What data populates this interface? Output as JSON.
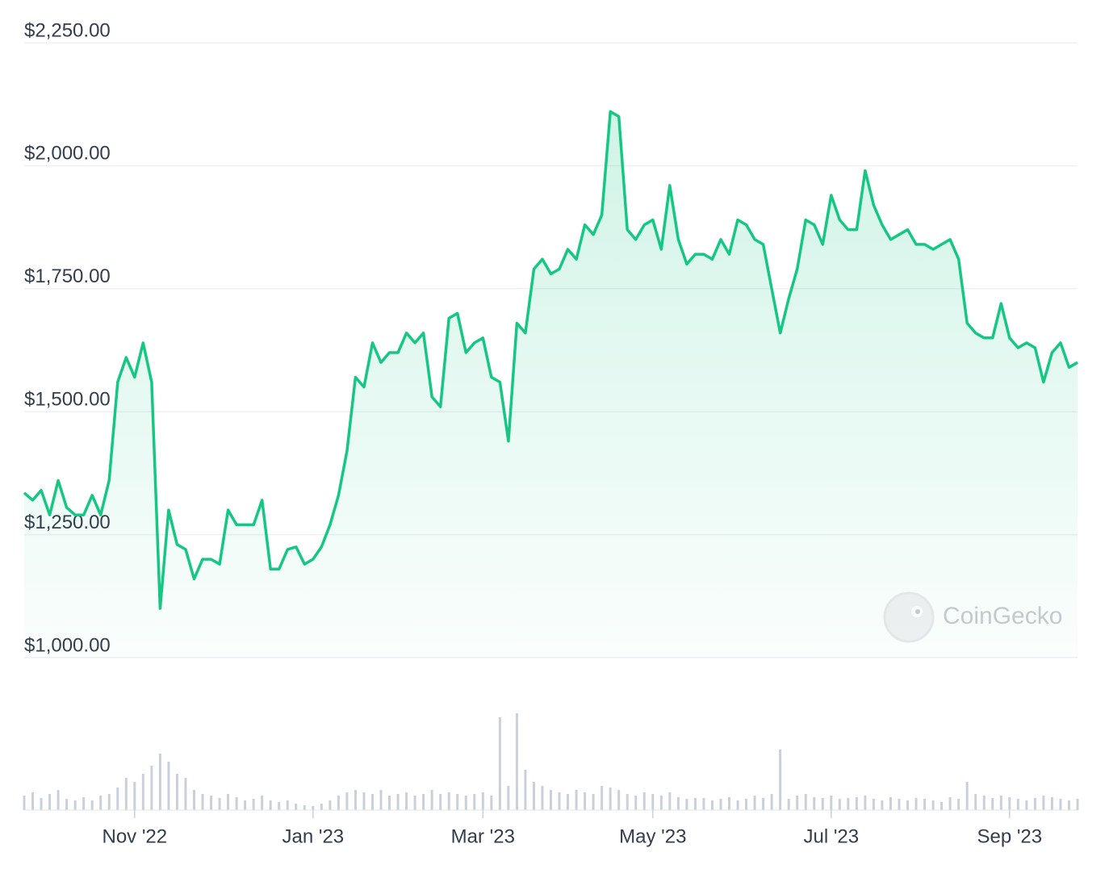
{
  "chart_data": {
    "type": "area",
    "watermark": "CoinGecko",
    "color": "#16c784",
    "volume_color": "#c9d0db",
    "grid": true,
    "ylim": [
      1000,
      2250
    ],
    "yticks": [
      {
        "value": 1000,
        "label": "$1,000.00"
      },
      {
        "value": 1250,
        "label": "$1,250.00"
      },
      {
        "value": 1500,
        "label": "$1,500.00"
      },
      {
        "value": 1750,
        "label": "$1,750.00"
      },
      {
        "value": 2000,
        "label": "$2,000.00"
      },
      {
        "value": 2250,
        "label": "$2,250.00"
      }
    ],
    "categories": [
      null,
      null,
      null,
      null,
      null,
      null,
      null,
      null,
      null,
      null,
      null,
      null,
      null,
      "Nov '22",
      null,
      null,
      null,
      null,
      null,
      null,
      null,
      null,
      null,
      null,
      null,
      null,
      null,
      null,
      null,
      null,
      null,
      null,
      null,
      null,
      "Jan '23",
      null,
      null,
      null,
      null,
      null,
      null,
      null,
      null,
      null,
      null,
      null,
      null,
      null,
      null,
      null,
      null,
      null,
      null,
      null,
      "Mar '23",
      null,
      null,
      null,
      null,
      null,
      null,
      null,
      null,
      null,
      null,
      null,
      null,
      null,
      null,
      null,
      null,
      null,
      null,
      null,
      "May '23",
      null,
      null,
      null,
      null,
      null,
      null,
      null,
      null,
      null,
      null,
      null,
      null,
      null,
      null,
      null,
      null,
      null,
      null,
      null,
      null,
      "Jul '23",
      null,
      null,
      null,
      null,
      null,
      null,
      null,
      null,
      null,
      null,
      null,
      null,
      null,
      null,
      null,
      null,
      null,
      null,
      null,
      null,
      "Sep '23",
      null,
      null,
      null,
      null,
      null,
      null,
      null,
      null
    ],
    "values": [
      1335,
      1320,
      1340,
      1290,
      1360,
      1305,
      1290,
      1290,
      1330,
      1290,
      1360,
      1560,
      1610,
      1570,
      1640,
      1560,
      1100,
      1300,
      1230,
      1220,
      1160,
      1200,
      1200,
      1190,
      1300,
      1270,
      1270,
      1270,
      1320,
      1180,
      1180,
      1220,
      1225,
      1190,
      1200,
      1225,
      1270,
      1330,
      1420,
      1570,
      1550,
      1640,
      1600,
      1620,
      1620,
      1660,
      1640,
      1660,
      1530,
      1510,
      1690,
      1700,
      1620,
      1640,
      1650,
      1570,
      1560,
      1440,
      1680,
      1660,
      1790,
      1810,
      1780,
      1790,
      1830,
      1810,
      1880,
      1860,
      1900,
      2110,
      2100,
      1870,
      1850,
      1880,
      1890,
      1830,
      1960,
      1850,
      1800,
      1820,
      1820,
      1810,
      1850,
      1820,
      1890,
      1880,
      1850,
      1840,
      1750,
      1660,
      1730,
      1790,
      1890,
      1880,
      1840,
      1940,
      1890,
      1870,
      1870,
      1990,
      1920,
      1880,
      1850,
      1860,
      1870,
      1840,
      1840,
      1830,
      1840,
      1850,
      1810,
      1680,
      1660,
      1650,
      1650,
      1720,
      1650,
      1630,
      1640,
      1630,
      1560,
      1620,
      1640,
      1590,
      1600
    ],
    "volume": [
      18,
      22,
      15,
      20,
      25,
      14,
      12,
      16,
      12,
      18,
      20,
      28,
      40,
      35,
      45,
      55,
      70,
      60,
      45,
      40,
      25,
      20,
      18,
      15,
      20,
      16,
      12,
      14,
      18,
      12,
      10,
      12,
      8,
      6,
      5,
      8,
      12,
      18,
      22,
      25,
      22,
      20,
      25,
      18,
      20,
      22,
      18,
      20,
      25,
      20,
      22,
      20,
      18,
      20,
      22,
      18,
      115,
      30,
      120,
      50,
      35,
      30,
      25,
      22,
      20,
      25,
      22,
      20,
      30,
      28,
      25,
      20,
      18,
      22,
      20,
      18,
      22,
      16,
      14,
      15,
      15,
      12,
      14,
      16,
      12,
      14,
      18,
      15,
      20,
      75,
      14,
      18,
      20,
      16,
      15,
      18,
      14,
      15,
      16,
      18,
      14,
      12,
      16,
      14,
      12,
      15,
      14,
      12,
      10,
      16,
      14,
      35,
      20,
      18,
      15,
      18,
      16,
      14,
      12,
      15,
      18,
      16,
      14,
      12,
      14
    ]
  }
}
